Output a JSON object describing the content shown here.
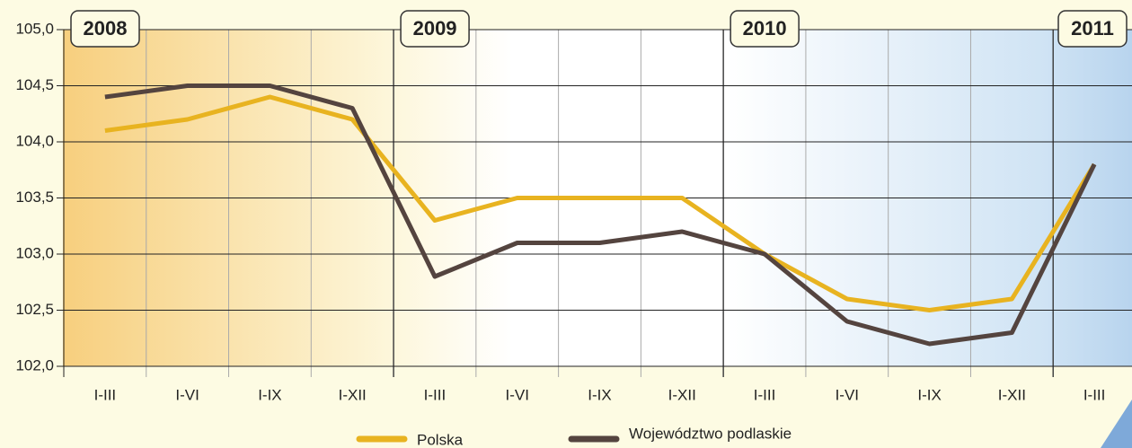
{
  "chart_data": {
    "type": "line",
    "categories": [
      "I-III",
      "I-VI",
      "I-IX",
      "I-XII",
      "I-III",
      "I-VI",
      "I-IX",
      "I-XII",
      "I-III",
      "I-VI",
      "I-IX",
      "I-XII",
      "I-III"
    ],
    "year_labels": [
      "2008",
      "2009",
      "2010",
      "2011"
    ],
    "series": [
      {
        "name": "Polska",
        "color": "#e8b320",
        "values": [
          104.1,
          104.2,
          104.4,
          104.2,
          103.3,
          103.5,
          103.5,
          103.5,
          103.0,
          102.6,
          102.5,
          102.6,
          103.8
        ]
      },
      {
        "name": "Województwo podlaskie",
        "color": "#54443f",
        "values": [
          104.4,
          104.5,
          104.5,
          104.3,
          102.8,
          103.1,
          103.1,
          103.2,
          103.0,
          102.4,
          102.2,
          102.3,
          103.8
        ]
      }
    ],
    "ylim": [
      102,
      105
    ],
    "yticks": [
      {
        "value": 102,
        "label": "102,0"
      },
      {
        "value": 102.5,
        "label": "102,5"
      },
      {
        "value": 103,
        "label": "103,0"
      },
      {
        "value": 103.5,
        "label": "103,5"
      },
      {
        "value": 104,
        "label": "104,0"
      },
      {
        "value": 104.5,
        "label": "104,5"
      },
      {
        "value": 105,
        "label": "105,0"
      }
    ],
    "grid": true
  }
}
